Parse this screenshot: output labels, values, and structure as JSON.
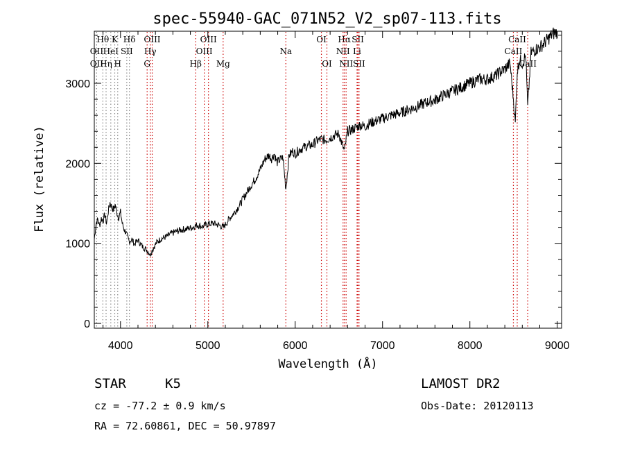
{
  "chart_data": {
    "type": "line",
    "title": "spec-55940-GAC_071N52_V2_sp07-113.fits",
    "xlabel": "Wavelength (Å)",
    "ylabel": "Flux (relative)",
    "xlim": [
      3700,
      9050
    ],
    "ylim": [
      -60,
      3650
    ],
    "x_ticks": [
      4000,
      5000,
      6000,
      7000,
      8000,
      9000
    ],
    "y_ticks": [
      0,
      1000,
      2000,
      3000
    ],
    "grid": false,
    "spectrum": {
      "x": [
        3700,
        3720,
        3740,
        3760,
        3780,
        3800,
        3820,
        3840,
        3860,
        3880,
        3900,
        3920,
        3940,
        3960,
        3980,
        4000,
        4020,
        4040,
        4060,
        4080,
        4100,
        4130,
        4160,
        4200,
        4250,
        4300,
        4340,
        4380,
        4420,
        4470,
        4520,
        4580,
        4640,
        4700,
        4760,
        4820,
        4880,
        4940,
        5000,
        5060,
        5120,
        5180,
        5240,
        5300,
        5360,
        5420,
        5480,
        5540,
        5600,
        5650,
        5700,
        5730,
        5760,
        5790,
        5830,
        5860,
        5893,
        5930,
        5970,
        6000,
        6050,
        6100,
        6150,
        6200,
        6250,
        6300,
        6350,
        6400,
        6450,
        6500,
        6563,
        6600,
        6650,
        6700,
        6750,
        6800,
        6850,
        6900,
        6950,
        7000,
        7100,
        7200,
        7300,
        7400,
        7500,
        7600,
        7700,
        7800,
        7900,
        8000,
        8100,
        8200,
        8300,
        8400,
        8460,
        8498,
        8520,
        8542,
        8570,
        8600,
        8640,
        8662,
        8700,
        8750,
        8800,
        8850,
        8900,
        8950,
        9000
      ],
      "y": [
        1050,
        1250,
        1300,
        1220,
        1310,
        1280,
        1360,
        1250,
        1400,
        1510,
        1450,
        1420,
        1480,
        1380,
        1320,
        1390,
        1250,
        1180,
        1140,
        1080,
        1020,
        1050,
        990,
        1040,
        960,
        920,
        860,
        950,
        1020,
        1060,
        1080,
        1120,
        1150,
        1170,
        1180,
        1200,
        1230,
        1210,
        1240,
        1250,
        1230,
        1200,
        1300,
        1380,
        1470,
        1590,
        1700,
        1800,
        1920,
        2050,
        2100,
        2060,
        2120,
        2010,
        2050,
        2070,
        1680,
        2100,
        2150,
        2120,
        2170,
        2200,
        2220,
        2230,
        2280,
        2300,
        2290,
        2320,
        2350,
        2370,
        2150,
        2400,
        2420,
        2450,
        2480,
        2460,
        2500,
        2520,
        2540,
        2560,
        2600,
        2630,
        2670,
        2710,
        2760,
        2790,
        2850,
        2900,
        2950,
        3000,
        3050,
        3050,
        3100,
        3180,
        3250,
        2800,
        2500,
        3150,
        3300,
        3250,
        3350,
        2700,
        3380,
        3420,
        3450,
        3500,
        3560,
        3620,
        3640
      ]
    },
    "lines": [
      {
        "name": "Hθ",
        "x": 3798,
        "row": 0,
        "color": "#888888"
      },
      {
        "name": "K",
        "x": 3934,
        "row": 0,
        "color": "#888888"
      },
      {
        "name": "Hδ",
        "x": 4102,
        "row": 0,
        "color": "#888888"
      },
      {
        "name": "OIII",
        "x": 4363,
        "row": 0,
        "color": "#cc0000"
      },
      {
        "name": "OIII",
        "x": 5007,
        "row": 0,
        "color": "#cc0000"
      },
      {
        "name": "OI",
        "x": 6300,
        "row": 0,
        "color": "#cc0000"
      },
      {
        "name": "Hα",
        "x": 6563,
        "row": 0,
        "color": "#cc0000"
      },
      {
        "name": "SII",
        "x": 6717,
        "row": 0,
        "color": "#cc0000"
      },
      {
        "name": "CaII",
        "x": 8542,
        "row": 0,
        "color": "#cc0000"
      },
      {
        "name": "OII",
        "x": 3727,
        "row": 1,
        "color": "#888888"
      },
      {
        "name": "HeI",
        "x": 3889,
        "row": 1,
        "color": "#888888"
      },
      {
        "name": "SII",
        "x": 4072,
        "row": 1,
        "color": "#888888"
      },
      {
        "name": "Hγ",
        "x": 4341,
        "row": 1,
        "color": "#cc0000"
      },
      {
        "name": "OIII",
        "x": 4959,
        "row": 1,
        "color": "#cc0000"
      },
      {
        "name": "Na",
        "x": 5893,
        "row": 1,
        "color": "#cc0000"
      },
      {
        "name": "NII",
        "x": 6548,
        "row": 1,
        "color": "#cc0000"
      },
      {
        "name": "Li",
        "x": 6708,
        "row": 1,
        "color": "#cc0000"
      },
      {
        "name": "CaII",
        "x": 8498,
        "row": 1,
        "color": "#cc0000"
      },
      {
        "name": "OII",
        "x": 3727,
        "row": 2,
        "color": "#888888"
      },
      {
        "name": "Hη",
        "x": 3835,
        "row": 2,
        "color": "#888888"
      },
      {
        "name": "H",
        "x": 3968,
        "row": 2,
        "color": "#888888"
      },
      {
        "name": "G",
        "x": 4305,
        "row": 2,
        "color": "#cc0000"
      },
      {
        "name": "Hβ",
        "x": 4861,
        "row": 2,
        "color": "#cc0000"
      },
      {
        "name": "Mg",
        "x": 5175,
        "row": 2,
        "color": "#cc0000"
      },
      {
        "name": "OI",
        "x": 6363,
        "row": 2,
        "color": "#cc0000"
      },
      {
        "name": "NII",
        "x": 6583,
        "row": 2,
        "color": "#cc0000"
      },
      {
        "name": "SII",
        "x": 6731,
        "row": 2,
        "color": "#cc0000"
      },
      {
        "name": "CaII",
        "x": 8662,
        "row": 2,
        "color": "#cc0000"
      }
    ]
  },
  "info": {
    "object_class": "STAR",
    "subclass": "K5",
    "survey": "LAMOST DR2",
    "cz": "cz = -77.2 ± 0.9 km/s",
    "obs_date": "Obs-Date: 20120113",
    "coords": "RA =  72.60861, DEC =  50.97897"
  }
}
